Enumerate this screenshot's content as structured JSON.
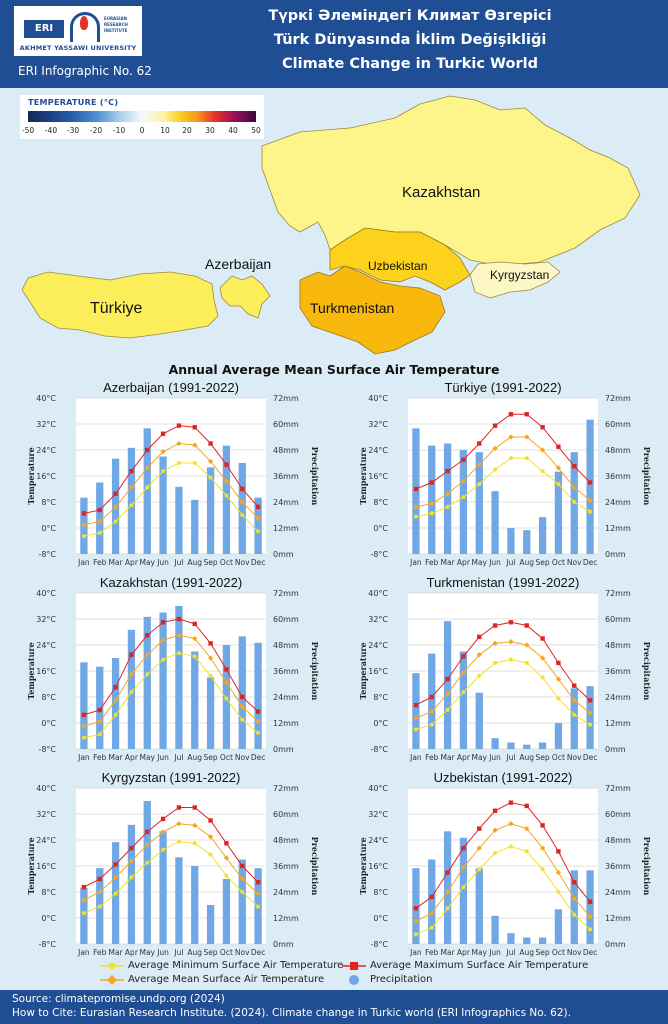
{
  "header": {
    "logo_abbr": "ERI",
    "logo_institute": "EURASIAN RESEARCH INSTITUTE",
    "logo_university": "AKHMET YASSAWI UNIVERSITY",
    "infographic_number": "ERI Infographic No. 62",
    "title_kazakh": "Түркі Әлеміндегі Климат Өзгерісі",
    "title_turkish": "Türk Dünyasında İklim Değişikliği",
    "title_english": "Climate Change in Turkic World"
  },
  "temperature_legend": {
    "title": "TEMPERATURE (°C)",
    "ticks": [
      "-50",
      "-40",
      "-30",
      "-20",
      "-10",
      "0",
      "10",
      "20",
      "30",
      "40",
      "50"
    ]
  },
  "map": {
    "labels": {
      "kazakhstan": "Kazakhstan",
      "azerbaijan": "Azerbaijan",
      "uzbekistan": "Uzbekistan",
      "kyrgyzstan": "Kyrgyzstan",
      "turkiye": "Türkiye",
      "turkmenistan": "Turkmenistan"
    },
    "colors": {
      "kazakhstan": "#fdf48a",
      "azerbaijan": "#fcee5a",
      "turkiye": "#fcee5a",
      "uzbekistan": "#fcd21c",
      "turkmenistan": "#f8b80e",
      "kyrgyzstan": "#fdf7c6"
    }
  },
  "main_title": "Annual Average Mean Surface Air Temperature",
  "axis": {
    "temperature_ticks": [
      "40°C",
      "32°C",
      "24°C",
      "16°C",
      "8°C",
      "0°C",
      "-8°C"
    ],
    "precipitation_ticks": [
      "72mm",
      "60mm",
      "48mm",
      "36mm",
      "24mm",
      "12mm",
      "0mm"
    ],
    "temperature_label": "Temperature",
    "precipitation_label": "Precipitation",
    "months": [
      "Jan",
      "Feb",
      "Mar",
      "Apr",
      "May",
      "Jun",
      "Jul",
      "Aug",
      "Sep",
      "Oct",
      "Nov",
      "Dec"
    ]
  },
  "chart_data": [
    {
      "type": "bar+line",
      "title": "Azerbaijan (1991-2022)",
      "categories": [
        "Jan",
        "Feb",
        "Mar",
        "Apr",
        "May",
        "Jun",
        "Jul",
        "Aug",
        "Sep",
        "Oct",
        "Nov",
        "Dec"
      ],
      "ylim_temperature": [
        -8,
        40
      ],
      "ylim_precipitation": [
        0,
        72
      ],
      "series": [
        {
          "name": "Precipitation",
          "axis": "precipitation",
          "values": [
            26,
            33,
            44,
            49,
            58,
            45,
            31,
            25,
            40,
            50,
            42,
            26
          ]
        },
        {
          "name": "Average Maximum Surface Air Temperature",
          "axis": "temperature",
          "values": [
            4.5,
            5.5,
            10.5,
            17.5,
            24,
            29,
            31.5,
            31,
            26,
            19.5,
            12,
            6.5
          ]
        },
        {
          "name": "Average Mean Surface Air Temperature",
          "axis": "temperature",
          "values": [
            1,
            2,
            6.5,
            12.5,
            18.5,
            23.5,
            26,
            25.5,
            20.5,
            14.5,
            8,
            3
          ]
        },
        {
          "name": "Average Minimum Surface Air Temperature",
          "axis": "temperature",
          "values": [
            -2.5,
            -1.5,
            2,
            7,
            12.5,
            17.5,
            20,
            20,
            15.5,
            10,
            4,
            -1
          ]
        }
      ]
    },
    {
      "type": "bar+line",
      "title": "Türkiye (1991-2022)",
      "categories": [
        "Jan",
        "Feb",
        "Mar",
        "Apr",
        "May",
        "Jun",
        "Jul",
        "Aug",
        "Sep",
        "Oct",
        "Nov",
        "Dec"
      ],
      "ylim_temperature": [
        -8,
        40
      ],
      "ylim_precipitation": [
        0,
        72
      ],
      "series": [
        {
          "name": "Precipitation",
          "axis": "precipitation",
          "values": [
            58,
            50,
            51,
            48,
            47,
            29,
            12,
            11,
            17,
            38,
            47,
            62
          ]
        },
        {
          "name": "Average Maximum Surface Air Temperature",
          "axis": "temperature",
          "values": [
            12,
            14,
            17.5,
            21,
            26,
            31.5,
            35,
            35,
            31,
            25,
            19,
            14
          ]
        },
        {
          "name": "Average Mean Surface Air Temperature",
          "axis": "temperature",
          "values": [
            6.5,
            7.5,
            10.5,
            14.5,
            19.5,
            24.5,
            28,
            28,
            24,
            18.5,
            12.5,
            8.5
          ]
        },
        {
          "name": "Average Minimum Surface Air Temperature",
          "axis": "temperature",
          "values": [
            3.5,
            4.5,
            6.5,
            9.5,
            13.5,
            18,
            21.5,
            21.5,
            17.5,
            13.5,
            8,
            5
          ]
        }
      ]
    },
    {
      "type": "bar+line",
      "title": "Kazakhstan (1991-2022)",
      "categories": [
        "Jan",
        "Feb",
        "Mar",
        "Apr",
        "May",
        "Jun",
        "Jul",
        "Aug",
        "Sep",
        "Oct",
        "Nov",
        "Dec"
      ],
      "ylim_temperature": [
        -8,
        40
      ],
      "ylim_precipitation": [
        0,
        72
      ],
      "series": [
        {
          "name": "Precipitation",
          "axis": "precipitation",
          "values": [
            40,
            38,
            42,
            55,
            61,
            63,
            66,
            45,
            33,
            48,
            52,
            49
          ]
        },
        {
          "name": "Average Maximum Surface Air Temperature",
          "axis": "temperature",
          "values": [
            2.5,
            4,
            11,
            21,
            27,
            31,
            32,
            30.5,
            24.5,
            16.5,
            8,
            3.5
          ]
        },
        {
          "name": "Average Mean Surface Air Temperature",
          "axis": "temperature",
          "values": [
            -1,
            0.5,
            7,
            15,
            21,
            25.5,
            27,
            26,
            20,
            12.5,
            5,
            0.5
          ]
        },
        {
          "name": "Average Minimum Surface Air Temperature",
          "axis": "temperature",
          "values": [
            -4.5,
            -3.5,
            2.5,
            9.5,
            15,
            19.5,
            21.5,
            20.5,
            14.5,
            7.5,
            1,
            -3
          ]
        }
      ]
    },
    {
      "type": "bar+line",
      "title": "Turkmenistan (1991-2022)",
      "categories": [
        "Jan",
        "Feb",
        "Mar",
        "Apr",
        "May",
        "Jun",
        "Jul",
        "Aug",
        "Sep",
        "Oct",
        "Nov",
        "Dec"
      ],
      "ylim_temperature": [
        -8,
        40
      ],
      "ylim_precipitation": [
        0,
        72
      ],
      "series": [
        {
          "name": "Precipitation",
          "axis": "precipitation",
          "values": [
            35,
            44,
            59,
            45,
            26,
            5,
            3,
            2,
            3,
            12,
            28,
            29
          ]
        },
        {
          "name": "Average Maximum Surface Air Temperature",
          "axis": "temperature",
          "values": [
            5.5,
            8,
            13.5,
            20.5,
            26.5,
            30,
            31,
            30,
            26,
            18.5,
            11.5,
            7
          ]
        },
        {
          "name": "Average Mean Surface Air Temperature",
          "axis": "temperature",
          "values": [
            1.5,
            3.5,
            9,
            15.5,
            21,
            24.5,
            25,
            24,
            20,
            13.5,
            7,
            3
          ]
        },
        {
          "name": "Average Minimum Surface Air Temperature",
          "axis": "temperature",
          "values": [
            -2,
            -0.5,
            4,
            9.5,
            14.5,
            18.5,
            19.5,
            18.5,
            14,
            7.5,
            2.5,
            -0.5
          ]
        }
      ]
    },
    {
      "type": "bar+line",
      "title": "Kyrgyzstan (1991-2022)",
      "categories": [
        "Jan",
        "Feb",
        "Mar",
        "Apr",
        "May",
        "Jun",
        "Jul",
        "Aug",
        "Sep",
        "Oct",
        "Nov",
        "Dec"
      ],
      "ylim_temperature": [
        -8,
        40
      ],
      "ylim_precipitation": [
        0,
        72
      ],
      "series": [
        {
          "name": "Precipitation",
          "axis": "precipitation",
          "values": [
            26,
            35,
            47,
            55,
            66,
            52,
            40,
            36,
            18,
            30,
            39,
            35
          ]
        },
        {
          "name": "Average Maximum Surface Air Temperature",
          "axis": "temperature",
          "values": [
            9.5,
            12,
            16.5,
            21.5,
            26.5,
            30.5,
            34,
            34,
            30,
            23,
            16,
            11
          ]
        },
        {
          "name": "Average Mean Surface Air Temperature",
          "axis": "temperature",
          "values": [
            5.5,
            8,
            12.5,
            17.5,
            22.5,
            26.5,
            29,
            28.5,
            25,
            18.5,
            12,
            7.5
          ]
        },
        {
          "name": "Average Minimum Surface Air Temperature",
          "axis": "temperature",
          "values": [
            1.5,
            3.5,
            7.5,
            12.5,
            17,
            21,
            23.5,
            23,
            19.5,
            13,
            8,
            3.5
          ]
        }
      ]
    },
    {
      "type": "bar+line",
      "title": "Uzbekistan (1991-2022)",
      "categories": [
        "Jan",
        "Feb",
        "Mar",
        "Apr",
        "May",
        "Jun",
        "Jul",
        "Aug",
        "Sep",
        "Oct",
        "Nov",
        "Dec"
      ],
      "ylim_temperature": [
        -8,
        40
      ],
      "ylim_precipitation": [
        0,
        72
      ],
      "series": [
        {
          "name": "Precipitation",
          "axis": "precipitation",
          "values": [
            35,
            39,
            52,
            49,
            35,
            13,
            5,
            3,
            3,
            16,
            34,
            34
          ]
        },
        {
          "name": "Average Maximum Surface Air Temperature",
          "axis": "temperature",
          "values": [
            3,
            6.5,
            14,
            21.5,
            27.5,
            33,
            35.5,
            34.5,
            28.5,
            20.5,
            11,
            5
          ]
        },
        {
          "name": "Average Mean Surface Air Temperature",
          "axis": "temperature",
          "values": [
            -1,
            1.5,
            8,
            15.5,
            21.5,
            27,
            29,
            27.5,
            21.5,
            14,
            6,
            0.5
          ]
        },
        {
          "name": "Average Minimum Surface Air Temperature",
          "axis": "temperature",
          "values": [
            -5,
            -3,
            3,
            9.5,
            15,
            20,
            22,
            20.5,
            15,
            8,
            1,
            -3.5
          ]
        }
      ]
    }
  ],
  "legend": {
    "min_label": "Average Minimum Surface Air Temperature",
    "mean_label": "Average Mean Surface Air Temperature",
    "max_label": "Average Maximum Surface Air Temperature",
    "precip_label": "Precipitation"
  },
  "series_colors": {
    "precipitation": "#6fa8e4",
    "max": "#e02424",
    "mean": "#f5a623",
    "min": "#f5e02a"
  },
  "footer": {
    "source": "Source: climatepromise.undp.org (2024)",
    "citation": "How to Cite: Eurasian Research Institute. (2024). Climate change in Turkic world (ERI Infographics No. 62)."
  }
}
